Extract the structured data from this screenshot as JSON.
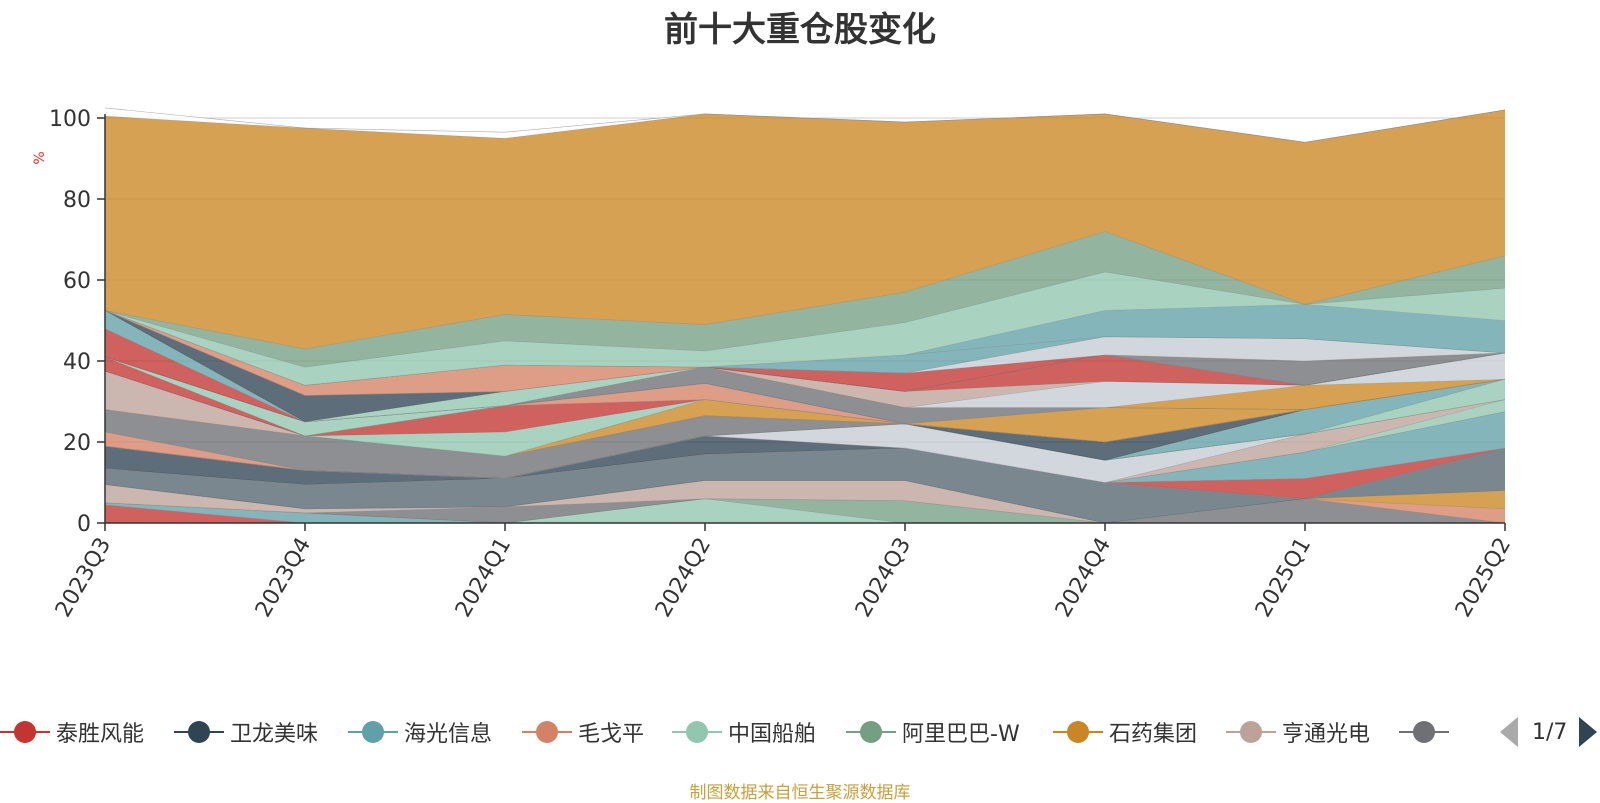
{
  "title": "前十大重仓股变化",
  "source_note": "制图数据来自恒生聚源数据库",
  "legend_page": "1/7",
  "chart_data": {
    "type": "area",
    "title": "前十大重仓股变化",
    "ylabel": "%",
    "ylim": [
      0,
      100
    ],
    "yticks": [
      0,
      20,
      40,
      60,
      80,
      100
    ],
    "grid": true,
    "legend_position": "bottom",
    "categories": [
      "2023Q3",
      "2023Q4",
      "2024Q1",
      "2024Q2",
      "2024Q3",
      "2024Q4",
      "2025Q1",
      "2025Q2"
    ],
    "legend": [
      {
        "name": "泰胜风能",
        "color": "#c23531"
      },
      {
        "name": "卫龙美味",
        "color": "#2f4554"
      },
      {
        "name": "海光信息",
        "color": "#61a0a8"
      },
      {
        "name": "毛戈平",
        "color": "#d48265"
      },
      {
        "name": "中国船舶",
        "color": "#91c7ae"
      },
      {
        "name": "阿里巴巴-W",
        "color": "#749f83"
      },
      {
        "name": "石药集团",
        "color": "#ca8622"
      },
      {
        "name": "亨通光电",
        "color": "#bda29a"
      },
      {
        "name": "",
        "color": "#6e7074"
      }
    ],
    "series": [
      {
        "color": "#c23531",
        "values": [
          4.5,
          0,
          0,
          0,
          0,
          0,
          0,
          0
        ]
      },
      {
        "color": "#61a0a8",
        "values": [
          0.5,
          2.5,
          0,
          0,
          0,
          0,
          0,
          0
        ]
      },
      {
        "color": "#91c7ae",
        "values": [
          0,
          0,
          0,
          6,
          0,
          0,
          0,
          0
        ]
      },
      {
        "color": "#749f83",
        "values": [
          0,
          0,
          0,
          0,
          5.5,
          0,
          0,
          0
        ]
      },
      {
        "color": "#6e7074",
        "values": [
          0,
          0,
          4,
          0,
          0,
          0,
          6,
          0
        ]
      },
      {
        "color": "#bda29a",
        "values": [
          4.5,
          1,
          0,
          4.5,
          5,
          0,
          0,
          0
        ]
      },
      {
        "color": "#d48265",
        "values": [
          0,
          0,
          0,
          0,
          0,
          0,
          0,
          3.5
        ]
      },
      {
        "color": "#ca8622",
        "values": [
          0,
          0,
          0,
          0,
          0,
          0,
          0,
          4.5
        ]
      },
      {
        "color": "#546570",
        "values": [
          4,
          6,
          7,
          6.5,
          8,
          10,
          0,
          10.5
        ]
      },
      {
        "color": "#c23531",
        "values": [
          0,
          0,
          0,
          0,
          0,
          0,
          5,
          0
        ]
      },
      {
        "color": "#61a0a8",
        "values": [
          0,
          0,
          0,
          0,
          0,
          0,
          6.5,
          9
        ]
      },
      {
        "color": "#2f4554",
        "values": [
          5.5,
          3.5,
          0,
          4.5,
          0,
          0,
          0,
          0
        ]
      },
      {
        "color": "#91c7ae",
        "values": [
          0,
          0,
          0,
          0,
          0,
          0,
          0,
          3
        ]
      },
      {
        "color": "#bda29a",
        "values": [
          0,
          0,
          0,
          0,
          0,
          0,
          4.5,
          0
        ]
      },
      {
        "color": "#c4ccd3",
        "values": [
          0,
          0,
          0,
          0,
          6,
          5.5,
          0,
          0
        ]
      },
      {
        "color": "#d48265",
        "values": [
          3.5,
          0,
          0,
          0,
          0,
          0,
          0,
          0
        ]
      },
      {
        "color": "#6e7074",
        "values": [
          5.5,
          8.5,
          5.5,
          5,
          0,
          0,
          0,
          0
        ]
      },
      {
        "color": "#91c7ae",
        "values": [
          0,
          0,
          0,
          0,
          0,
          0,
          0,
          5
        ]
      },
      {
        "color": "#61a0a8",
        "values": [
          0,
          0,
          0,
          0,
          0,
          0,
          6,
          0
        ]
      },
      {
        "color": "#ca8622",
        "values": [
          0,
          0,
          0,
          4,
          0,
          0,
          0,
          0
        ]
      },
      {
        "color": "#2f4554",
        "values": [
          0,
          0,
          0,
          0,
          0,
          4.5,
          0,
          0
        ]
      },
      {
        "color": "#91c7ae",
        "values": [
          0,
          0,
          6,
          0,
          0,
          0,
          0,
          0
        ]
      },
      {
        "color": "#c23531",
        "values": [
          0,
          0,
          6.5,
          0,
          0,
          0,
          0,
          0
        ]
      },
      {
        "color": "#d48265",
        "values": [
          0,
          0,
          0,
          4,
          0,
          0,
          0,
          0
        ]
      },
      {
        "color": "#bda29a",
        "values": [
          9.5,
          0,
          0,
          0,
          0,
          0,
          0,
          0
        ]
      },
      {
        "color": "#ca8622",
        "values": [
          0,
          0,
          0,
          0,
          0,
          8.5,
          0,
          0
        ]
      },
      {
        "color": "#6e7074",
        "values": [
          0,
          0,
          0,
          4,
          4,
          0,
          0,
          0
        ]
      },
      {
        "color": "#c23531",
        "values": [
          3.5,
          0,
          0,
          0,
          0,
          0,
          0,
          0
        ]
      },
      {
        "color": "#91c7ae",
        "values": [
          0,
          3.5,
          0,
          0,
          0,
          0,
          0,
          0
        ]
      },
      {
        "color": "#ca8622",
        "values": [
          0,
          0,
          0,
          0,
          0,
          0,
          6,
          0
        ]
      },
      {
        "color": "#c4ccd3",
        "values": [
          0,
          0,
          0,
          0,
          0,
          6.5,
          0,
          6.5
        ]
      },
      {
        "color": "#bda29a",
        "values": [
          0,
          0,
          0,
          0,
          4,
          0,
          0,
          0
        ]
      },
      {
        "color": "#c23531",
        "values": [
          7,
          0,
          0,
          0,
          0,
          6.5,
          0,
          0
        ]
      },
      {
        "color": "#61a0a8",
        "values": [
          4.5,
          0,
          0,
          0,
          0,
          0,
          0,
          0
        ]
      },
      {
        "color": "#6e7074",
        "values": [
          0,
          0,
          0,
          0,
          0,
          0,
          6,
          0
        ]
      },
      {
        "color": "#91c7ae",
        "values": [
          0,
          0,
          3.5,
          0,
          0,
          0,
          0,
          0
        ]
      },
      {
        "color": "#2f4554",
        "values": [
          0,
          6.5,
          0,
          0,
          0,
          0,
          0,
          0
        ]
      },
      {
        "color": "#c23531",
        "values": [
          0,
          0,
          0,
          0,
          4.5,
          0,
          0,
          0
        ]
      },
      {
        "color": "#d48265",
        "values": [
          0,
          2.5,
          6.5,
          0,
          0,
          0,
          0,
          0
        ]
      },
      {
        "color": "#c4ccd3",
        "values": [
          0,
          0,
          0,
          0,
          0,
          4.5,
          5.5,
          0
        ]
      },
      {
        "color": "#61a0a8",
        "values": [
          0,
          0,
          0,
          0,
          4.5,
          0,
          0,
          0
        ]
      },
      {
        "color": "#61a0a8",
        "values": [
          0,
          0,
          0,
          0,
          0,
          6.5,
          8.5,
          8
        ]
      },
      {
        "color": "#91c7ae",
        "values": [
          0,
          4.5,
          6,
          4,
          8,
          9.5,
          0,
          8
        ]
      },
      {
        "color": "#749f83",
        "values": [
          0,
          4.5,
          6.5,
          6.5,
          7.5,
          10,
          0,
          8
        ]
      },
      {
        "color": "#ca8622",
        "values": [
          48,
          54.5,
          43.5,
          52,
          42,
          29,
          40,
          36
        ]
      },
      {
        "color": "#ffffff",
        "values": [
          2,
          0,
          1.5,
          0,
          0,
          0,
          0,
          0
        ]
      }
    ]
  }
}
